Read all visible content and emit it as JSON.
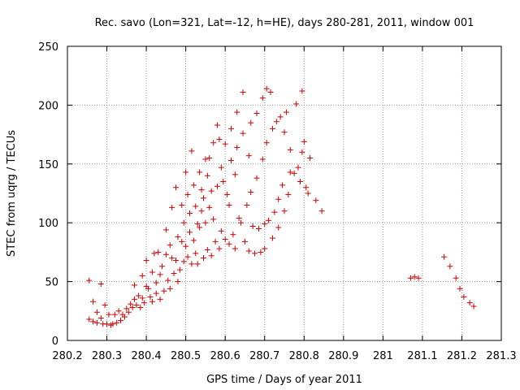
{
  "chart_data": {
    "type": "scatter",
    "title": "Rec. savo (Lon=321, Lat=-12, h=HE), days 280-281, 2011, window 001",
    "xlabel": "GPS time / Days of year 2011",
    "ylabel": "STEC from uqrg / TECUs",
    "xlim": [
      280.2,
      281.3
    ],
    "ylim": [
      0,
      250
    ],
    "x_ticks": [
      "280.2",
      "280.3",
      "280.4",
      "280.5",
      "280.6",
      "280.7",
      "280.8",
      "280.9",
      "281",
      "281.1",
      "281.2",
      "281.3"
    ],
    "y_ticks": [
      "0",
      "50",
      "100",
      "150",
      "200",
      "250"
    ],
    "x_tick_values": [
      280.2,
      280.3,
      280.4,
      280.5,
      280.6,
      280.7,
      280.8,
      280.9,
      281.0,
      281.1,
      281.2,
      281.3
    ],
    "y_tick_values": [
      0,
      50,
      100,
      150,
      200,
      250
    ],
    "grid": true,
    "marker": "plus",
    "color": "#cc0000",
    "series": [
      {
        "points": [
          [
            280.255,
            51
          ],
          [
            280.255,
            18
          ],
          [
            280.265,
            33
          ],
          [
            280.265,
            16
          ],
          [
            280.275,
            24
          ],
          [
            280.275,
            15
          ],
          [
            280.285,
            48
          ],
          [
            280.285,
            19
          ],
          [
            280.29,
            14
          ],
          [
            280.295,
            30
          ],
          [
            280.3,
            14
          ],
          [
            280.305,
            22
          ],
          [
            280.31,
            13
          ],
          [
            280.315,
            14
          ],
          [
            280.32,
            22
          ],
          [
            280.325,
            15
          ],
          [
            280.33,
            25
          ],
          [
            280.335,
            17
          ],
          [
            280.34,
            22
          ],
          [
            280.345,
            20
          ],
          [
            280.35,
            27
          ],
          [
            280.355,
            24
          ],
          [
            280.36,
            31
          ],
          [
            280.365,
            28
          ],
          [
            280.37,
            47
          ],
          [
            280.37,
            35
          ],
          [
            280.375,
            30
          ],
          [
            280.38,
            38
          ],
          [
            280.385,
            28
          ],
          [
            280.39,
            55
          ],
          [
            280.39,
            36
          ],
          [
            280.395,
            32
          ],
          [
            280.4,
            46
          ],
          [
            280.4,
            68
          ],
          [
            280.405,
            44
          ],
          [
            280.41,
            37
          ],
          [
            280.415,
            58
          ],
          [
            280.415,
            33
          ],
          [
            280.42,
            74
          ],
          [
            280.425,
            49
          ],
          [
            280.425,
            40
          ],
          [
            280.43,
            75
          ],
          [
            280.435,
            56
          ],
          [
            280.435,
            35
          ],
          [
            280.44,
            63
          ],
          [
            280.445,
            42
          ],
          [
            280.45,
            94
          ],
          [
            280.45,
            73
          ],
          [
            280.455,
            51
          ],
          [
            280.46,
            81
          ],
          [
            280.46,
            44
          ],
          [
            280.465,
            113
          ],
          [
            280.465,
            70
          ],
          [
            280.47,
            57
          ],
          [
            280.475,
            130
          ],
          [
            280.475,
            68
          ],
          [
            280.48,
            88
          ],
          [
            280.48,
            50
          ],
          [
            280.485,
            60
          ],
          [
            280.49,
            115
          ],
          [
            280.49,
            84
          ],
          [
            280.495,
            100
          ],
          [
            280.495,
            67
          ],
          [
            280.5,
            143
          ],
          [
            280.5,
            80
          ],
          [
            280.505,
            124
          ],
          [
            280.505,
            71
          ],
          [
            280.51,
            108
          ],
          [
            280.51,
            92
          ],
          [
            280.515,
            161
          ],
          [
            280.515,
            65
          ],
          [
            280.52,
            132
          ],
          [
            280.52,
            85
          ],
          [
            280.525,
            114
          ],
          [
            280.525,
            74
          ],
          [
            280.53,
            99
          ],
          [
            280.53,
            65
          ],
          [
            280.535,
            143
          ],
          [
            280.535,
            96
          ],
          [
            280.54,
            128
          ],
          [
            280.54,
            110
          ],
          [
            280.545,
            121
          ],
          [
            280.545,
            70
          ],
          [
            280.55,
            154
          ],
          [
            280.55,
            100
          ],
          [
            280.555,
            140
          ],
          [
            280.555,
            77
          ],
          [
            280.56,
            155
          ],
          [
            280.56,
            113
          ],
          [
            280.565,
            127
          ],
          [
            280.565,
            72
          ],
          [
            280.57,
            168
          ],
          [
            280.57,
            103
          ],
          [
            280.575,
            84
          ],
          [
            280.58,
            183
          ],
          [
            280.58,
            131
          ],
          [
            280.585,
            171
          ],
          [
            280.585,
            78
          ],
          [
            280.59,
            147
          ],
          [
            280.59,
            93
          ],
          [
            280.595,
            135
          ],
          [
            280.6,
            167
          ],
          [
            280.6,
            86
          ],
          [
            280.605,
            124
          ],
          [
            280.61,
            115
          ],
          [
            280.61,
            82
          ],
          [
            280.615,
            180
          ],
          [
            280.615,
            153
          ],
          [
            280.62,
            90
          ],
          [
            280.625,
            141
          ],
          [
            280.625,
            78
          ],
          [
            280.63,
            194
          ],
          [
            280.63,
            164
          ],
          [
            280.635,
            104
          ],
          [
            280.64,
            100
          ],
          [
            280.645,
            211
          ],
          [
            280.645,
            176
          ],
          [
            280.65,
            84
          ],
          [
            280.655,
            115
          ],
          [
            280.66,
            157
          ],
          [
            280.66,
            76
          ],
          [
            280.665,
            185
          ],
          [
            280.665,
            126
          ],
          [
            280.67,
            97
          ],
          [
            280.675,
            74
          ],
          [
            280.68,
            193
          ],
          [
            280.68,
            138
          ],
          [
            280.685,
            95
          ],
          [
            280.69,
            75
          ],
          [
            280.695,
            206
          ],
          [
            280.695,
            154
          ],
          [
            280.7,
            99
          ],
          [
            280.7,
            78
          ],
          [
            280.705,
            214
          ],
          [
            280.705,
            168
          ],
          [
            280.71,
            102
          ],
          [
            280.715,
            211
          ],
          [
            280.72,
            180
          ],
          [
            280.72,
            87
          ],
          [
            280.725,
            109
          ],
          [
            280.73,
            186
          ],
          [
            280.735,
            120
          ],
          [
            280.735,
            96
          ],
          [
            280.74,
            190
          ],
          [
            280.745,
            132
          ],
          [
            280.75,
            177
          ],
          [
            280.75,
            110
          ],
          [
            280.755,
            194
          ],
          [
            280.76,
            124
          ],
          [
            280.765,
            162
          ],
          [
            280.765,
            143
          ],
          [
            280.775,
            142
          ],
          [
            280.78,
            201
          ],
          [
            280.785,
            147
          ],
          [
            280.79,
            135
          ],
          [
            280.795,
            212
          ],
          [
            280.795,
            160
          ],
          [
            280.8,
            169
          ],
          [
            280.805,
            130
          ],
          [
            280.81,
            125
          ],
          [
            280.815,
            155
          ],
          [
            280.83,
            119
          ],
          [
            280.845,
            110
          ],
          [
            281.07,
            53
          ],
          [
            281.08,
            54
          ],
          [
            281.09,
            53
          ],
          [
            281.155,
            71
          ],
          [
            281.17,
            63
          ],
          [
            281.185,
            53
          ],
          [
            281.195,
            44
          ],
          [
            281.205,
            37
          ],
          [
            281.22,
            32
          ],
          [
            281.23,
            29
          ]
        ]
      }
    ]
  }
}
